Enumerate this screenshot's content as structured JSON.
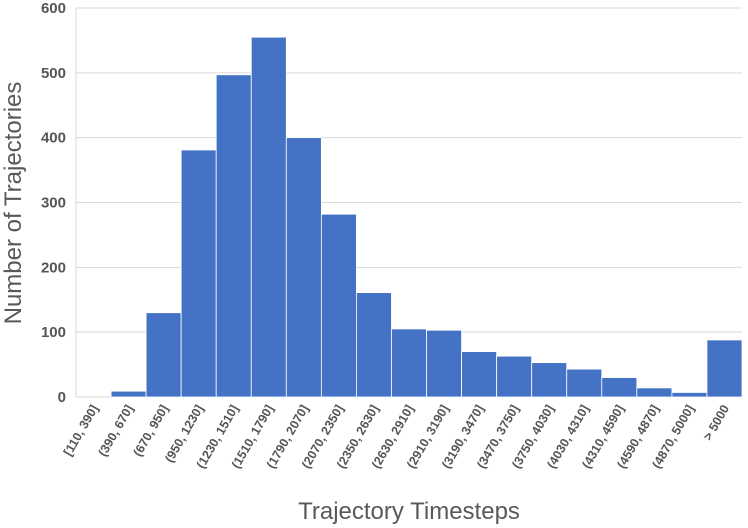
{
  "chart_data": {
    "type": "bar",
    "title": "",
    "xlabel": "Trajectory Timesteps",
    "ylabel": "Number of Trajectories",
    "ylim": [
      0,
      600
    ],
    "yticks": [
      "0",
      "100",
      "200",
      "300",
      "400",
      "500",
      "600"
    ],
    "grid": true,
    "bar_color": "#4472c4",
    "categories": [
      "[110, 390]",
      "(390, 670]",
      "(670, 950]",
      "(950, 1230]",
      "(1230, 1510]",
      "(1510, 1790]",
      "(1790, 2070]",
      "(2070, 2350]",
      "(2350, 2630]",
      "(2630, 2910]",
      "(2910, 3190]",
      "(3190, 3470]",
      "(3470, 3750]",
      "(3750, 4030]",
      "(4030, 4310]",
      "(4310, 4590]",
      "(4590, 4870]",
      "(4870, 5000]",
      "> 5000"
    ],
    "values": [
      0,
      9,
      130,
      381,
      497,
      555,
      400,
      282,
      161,
      105,
      103,
      70,
      63,
      53,
      43,
      30,
      14,
      7,
      88
    ]
  }
}
